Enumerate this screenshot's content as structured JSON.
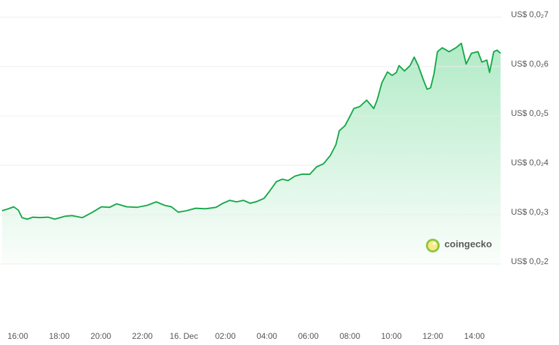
{
  "chart_data": {
    "type": "area",
    "watermark": "coingecko",
    "color": "#18a84a",
    "grid": true,
    "x": [
      15.24,
      15.54,
      15.8,
      16.03,
      16.2,
      16.46,
      16.73,
      17.06,
      17.45,
      17.78,
      18.28,
      18.61,
      19.11,
      19.6,
      20.03,
      20.43,
      20.76,
      21.25,
      21.75,
      22.24,
      22.67,
      23.07,
      23.4,
      23.73,
      24.13,
      24.56,
      25.05,
      25.55,
      25.88,
      26.21,
      26.54,
      26.87,
      27.2,
      27.53,
      27.86,
      28.12,
      28.46,
      28.75,
      29.02,
      29.35,
      29.68,
      30.07,
      30.4,
      30.73,
      31.06,
      31.33,
      31.49,
      31.76,
      31.99,
      32.19,
      32.48,
      32.81,
      33.15,
      33.31,
      33.54,
      33.81,
      34.04,
      34.24,
      34.37,
      34.63,
      34.9,
      35.1,
      35.29,
      35.56,
      35.72,
      35.89,
      36.05,
      36.22,
      36.45,
      36.78,
      37.11,
      37.37,
      37.6,
      37.86,
      38.17,
      38.36,
      38.6,
      38.73,
      38.93,
      39.09,
      39.26
    ],
    "values": [
      0.00308,
      0.00312,
      0.00316,
      0.00309,
      0.00294,
      0.00291,
      0.00295,
      0.00294,
      0.00295,
      0.00291,
      0.00297,
      0.00298,
      0.00294,
      0.00305,
      0.00316,
      0.00315,
      0.00322,
      0.00316,
      0.00315,
      0.00319,
      0.00326,
      0.00319,
      0.00316,
      0.00305,
      0.00308,
      0.00313,
      0.00312,
      0.00315,
      0.00323,
      0.00329,
      0.00326,
      0.00329,
      0.00323,
      0.00327,
      0.00333,
      0.00347,
      0.00367,
      0.00372,
      0.00369,
      0.00378,
      0.00382,
      0.00382,
      0.00397,
      0.00403,
      0.0042,
      0.00442,
      0.0047,
      0.0048,
      0.00498,
      0.00515,
      0.00519,
      0.00532,
      0.00515,
      0.00532,
      0.00567,
      0.00589,
      0.00582,
      0.00588,
      0.00602,
      0.00591,
      0.00602,
      0.00619,
      0.00602,
      0.00571,
      0.00554,
      0.00557,
      0.00585,
      0.0063,
      0.00638,
      0.0063,
      0.00638,
      0.00647,
      0.00605,
      0.00627,
      0.0063,
      0.00609,
      0.00613,
      0.00588,
      0.0063,
      0.00633,
      0.00627
    ],
    "xlim": [
      15.2,
      39.3
    ],
    "xticks": [
      {
        "value": 16,
        "label": "16:00"
      },
      {
        "value": 18,
        "label": "18:00"
      },
      {
        "value": 20,
        "label": "20:00"
      },
      {
        "value": 22,
        "label": "22:00"
      },
      {
        "value": 24,
        "label": "16. Dec"
      },
      {
        "value": 26,
        "label": "02:00"
      },
      {
        "value": 28,
        "label": "04:00"
      },
      {
        "value": 30,
        "label": "06:00"
      },
      {
        "value": 32,
        "label": "08:00"
      },
      {
        "value": 34,
        "label": "10:00"
      },
      {
        "value": 36,
        "label": "12:00"
      },
      {
        "value": 38,
        "label": "14:00"
      }
    ],
    "ylim": [
      0.002,
      0.007
    ],
    "yticks": [
      {
        "value": 0.002,
        "label": "US$ 0,0₂2"
      },
      {
        "value": 0.003,
        "label": "US$ 0,0₂3"
      },
      {
        "value": 0.004,
        "label": "US$ 0,0₂4"
      },
      {
        "value": 0.005,
        "label": "US$ 0,0₂5"
      },
      {
        "value": 0.006,
        "label": "US$ 0,0₂6"
      },
      {
        "value": 0.007,
        "label": "US$ 0,0₂7"
      }
    ]
  }
}
